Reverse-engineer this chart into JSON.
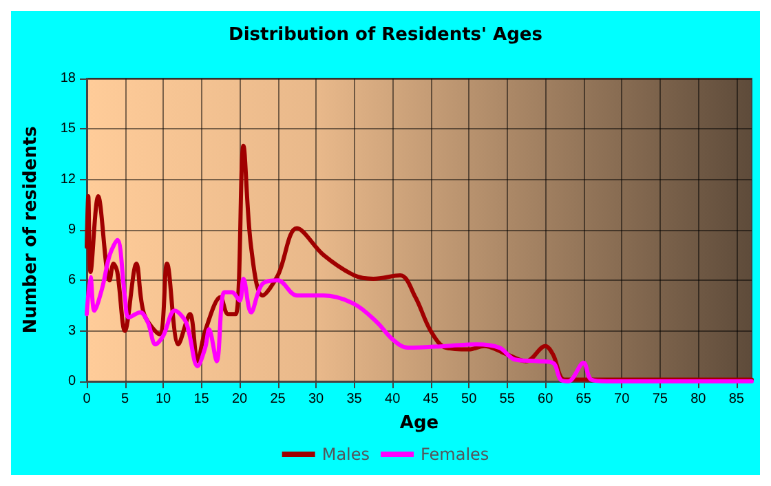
{
  "chart_data": {
    "type": "line",
    "title": "Distribution of Residents' Ages",
    "xlabel": "Age",
    "ylabel": "Number of residents",
    "xlim": [
      0,
      87
    ],
    "xticks": [
      0,
      5,
      10,
      15,
      20,
      25,
      30,
      35,
      40,
      45,
      50,
      55,
      60,
      65,
      70,
      75,
      80,
      85
    ],
    "ylim": [
      0,
      18
    ],
    "yticks": [
      0,
      3,
      6,
      9,
      12,
      15,
      18
    ],
    "grid": true,
    "legend": "bottom",
    "marker": "none",
    "line_style": "solid",
    "series": [
      {
        "name": "Males",
        "color": "#a00000",
        "x": [
          0,
          0.2,
          0.5,
          1.5,
          3,
          3.5,
          4,
          5,
          6.5,
          7.5,
          9.5,
          10.5,
          12,
          13.5,
          14.5,
          15.5,
          17.5,
          18.5,
          19.5,
          20.5,
          21.5,
          23,
          25,
          27.5,
          31,
          35,
          37.5,
          41,
          43,
          45,
          47,
          50,
          52,
          55,
          57.5,
          60,
          61,
          62.5,
          65,
          87
        ],
        "values": [
          8,
          11,
          6.5,
          11,
          6,
          7,
          6.5,
          3,
          7,
          4,
          2.8,
          7,
          2.2,
          4,
          1.2,
          3,
          5,
          4,
          4,
          14,
          8,
          5.1,
          6.3,
          9.1,
          7.5,
          6.3,
          6.1,
          6.3,
          5,
          3,
          2,
          1.9,
          2.1,
          1.6,
          1.2,
          2.1,
          1.6,
          0.1,
          0.1,
          0.1
        ]
      },
      {
        "name": "Females",
        "color": "#ff00ff",
        "x": [
          0,
          0.5,
          1,
          2,
          3,
          4,
          5,
          5.5,
          7,
          8,
          9,
          10,
          11.5,
          13,
          14.5,
          15.5,
          16,
          17,
          18,
          19,
          20,
          20.5,
          21.5,
          23,
          25,
          27.5,
          31,
          35,
          38,
          40,
          42,
          47,
          51,
          54,
          56,
          59,
          61,
          62,
          63,
          65,
          66,
          68,
          87
        ],
        "values": [
          4,
          6.2,
          4.2,
          5.5,
          7.5,
          8.4,
          5,
          3.8,
          4.1,
          3.5,
          2.2,
          2.7,
          4.2,
          3.5,
          0.9,
          2,
          3.1,
          1.2,
          5.3,
          5.3,
          4.8,
          6.1,
          4.1,
          5.8,
          6,
          5.1,
          5.1,
          4.6,
          3.5,
          2.5,
          2,
          2.1,
          2.2,
          2,
          1.3,
          1.2,
          1.1,
          0.1,
          0,
          1.1,
          0.1,
          0,
          0
        ]
      }
    ]
  }
}
